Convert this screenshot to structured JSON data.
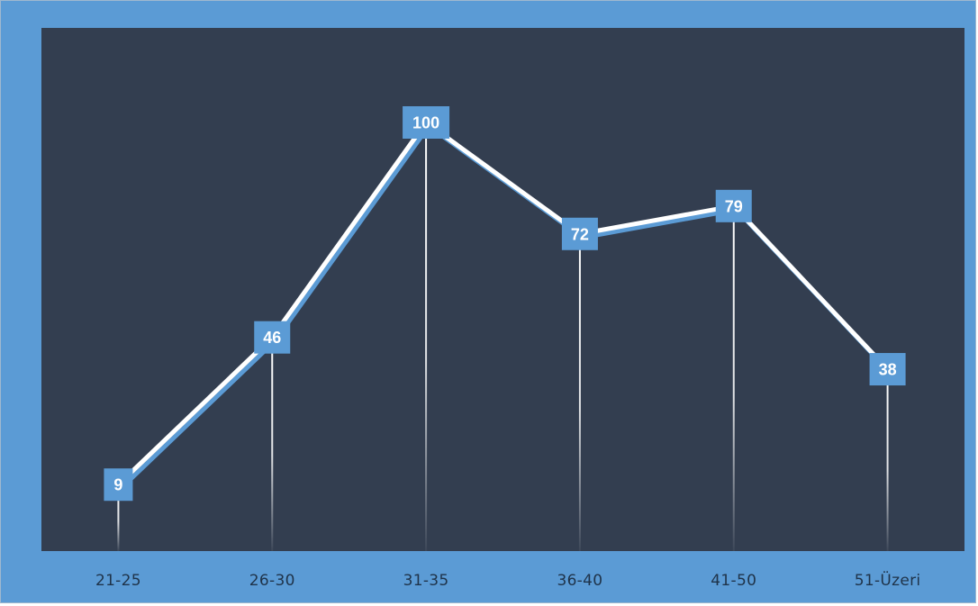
{
  "chart_data": {
    "type": "line",
    "categories": [
      "21-25",
      "26-30",
      "31-35",
      "36-40",
      "41-50",
      "51-Üzeri"
    ],
    "values": [
      9,
      46,
      100,
      72,
      79,
      38
    ],
    "data_labels": [
      "9",
      "46",
      "100",
      "72",
      "79",
      "38"
    ],
    "title": "",
    "xlabel": "",
    "ylabel": "",
    "ylim": [
      0,
      100
    ],
    "grid": false,
    "legend": "none",
    "drop_lines": true
  },
  "colors": {
    "frame": "#5b9bd5",
    "plot_area": "#333e50",
    "line": "#ffffff",
    "line_shadow": "#5b9bd5",
    "marker": "#5b9bd5",
    "label_text": "#ffffff",
    "tick_text": "#1f3349"
  }
}
